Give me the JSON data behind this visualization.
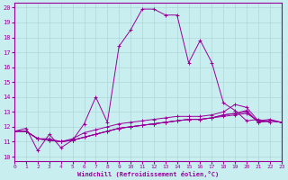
{
  "xlabel": "Windchill (Refroidissement éolien,°C)",
  "bg_color": "#c8eef0",
  "line_color": "#990099",
  "grid_color": "#b0d8d8",
  "x_ticks": [
    0,
    1,
    2,
    3,
    4,
    5,
    6,
    7,
    8,
    9,
    10,
    11,
    12,
    13,
    14,
    15,
    16,
    17,
    18,
    19,
    20,
    21,
    22,
    23
  ],
  "y_ticks": [
    10,
    11,
    12,
    13,
    14,
    15,
    16,
    17,
    18,
    19,
    20
  ],
  "xlim": [
    0,
    23
  ],
  "ylim": [
    9.7,
    20.3
  ],
  "series": [
    [
      11.7,
      11.9,
      10.4,
      11.5,
      10.6,
      11.1,
      12.2,
      14.0,
      12.3,
      17.4,
      18.5,
      19.9,
      19.9,
      19.5,
      19.5,
      16.3,
      17.8,
      16.3,
      13.6,
      13.1,
      12.4,
      12.5,
      12.3,
      null
    ],
    [
      11.7,
      11.7,
      11.2,
      11.2,
      11.0,
      11.2,
      11.6,
      11.8,
      12.0,
      12.2,
      12.3,
      12.4,
      12.5,
      12.6,
      12.7,
      12.7,
      12.7,
      12.8,
      13.0,
      13.5,
      13.3,
      12.4,
      12.5,
      12.3
    ],
    [
      11.7,
      11.7,
      11.2,
      11.1,
      11.0,
      11.1,
      11.3,
      11.5,
      11.7,
      11.9,
      12.0,
      12.1,
      12.2,
      12.3,
      12.4,
      12.5,
      12.5,
      12.6,
      12.7,
      12.8,
      12.9,
      12.4,
      12.4,
      12.3
    ],
    [
      11.7,
      11.7,
      11.2,
      11.1,
      11.0,
      11.1,
      11.3,
      11.5,
      11.7,
      11.9,
      12.0,
      12.1,
      12.2,
      12.3,
      12.4,
      12.5,
      12.5,
      12.6,
      12.8,
      12.9,
      13.0,
      12.3,
      12.4,
      12.3
    ],
    [
      11.7,
      11.7,
      11.2,
      11.1,
      11.0,
      11.1,
      11.3,
      11.5,
      11.7,
      11.9,
      12.0,
      12.1,
      12.2,
      12.3,
      12.4,
      12.5,
      12.5,
      12.6,
      12.8,
      12.9,
      13.1,
      12.3,
      12.4,
      12.3
    ]
  ]
}
